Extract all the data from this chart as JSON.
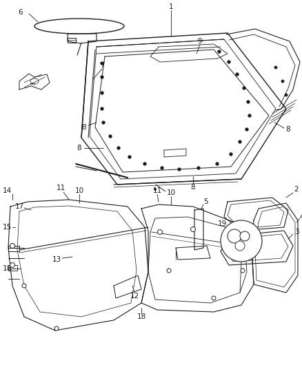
{
  "bg_color": "#ffffff",
  "line_color": "#1a1a1a",
  "fig_width": 4.38,
  "fig_height": 5.33,
  "dpi": 100,
  "font_size": 7.5
}
